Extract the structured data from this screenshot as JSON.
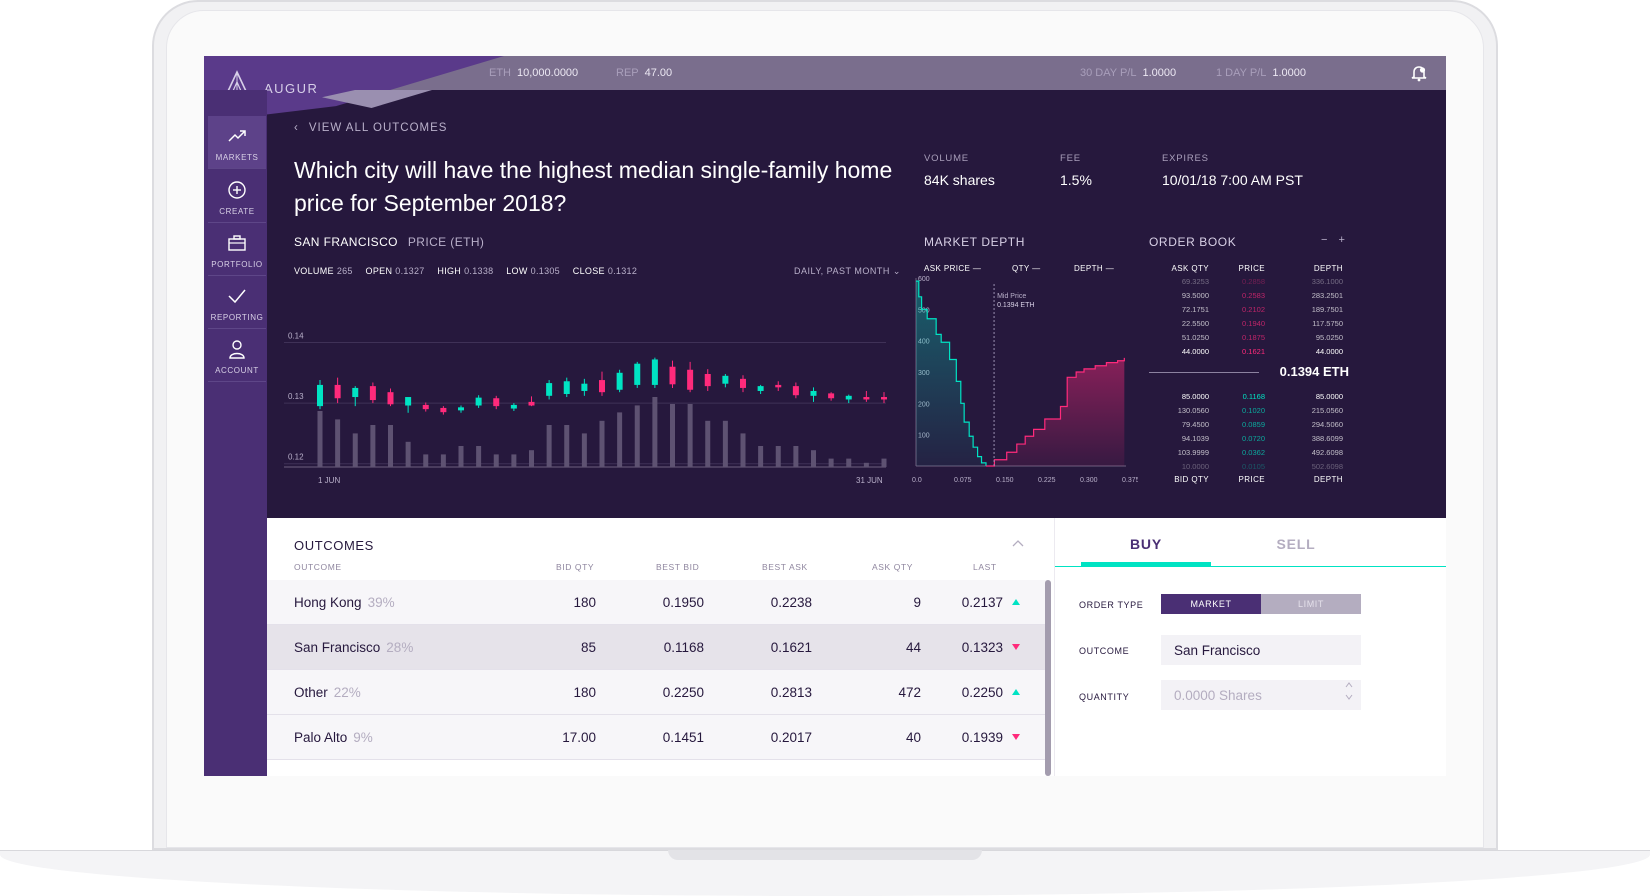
{
  "app": {
    "logo_text": "AUGUR"
  },
  "topbar": {
    "eth_label": "ETH",
    "eth_value": "10,000.0000",
    "rep_label": "REP",
    "rep_value": "47.00",
    "pl30_label": "30 DAY P/L",
    "pl30_value": "1.0000",
    "pl1_label": "1 DAY P/L",
    "pl1_value": "1.0000",
    "notification_icon": "bell-icon"
  },
  "sidebar": {
    "items": [
      {
        "label": "MARKETS",
        "icon": "trend-up-icon",
        "active": true
      },
      {
        "label": "CREATE",
        "icon": "plus-circle-icon"
      },
      {
        "label": "PORTFOLIO",
        "icon": "briefcase-icon"
      },
      {
        "label": "REPORTING",
        "icon": "check-icon"
      },
      {
        "label": "ACCOUNT",
        "icon": "person-icon"
      }
    ]
  },
  "market": {
    "back_label": "VIEW ALL OUTCOMES",
    "question": "Which city will have the highest median single-family home price for September 2018?",
    "volume_label": "VOLUME",
    "volume_value": "84K shares",
    "fee_label": "FEE",
    "fee_value": "1.5%",
    "expires_label": "EXPIRES",
    "expires_value": "10/01/18 7:00 AM PST"
  },
  "price_chart": {
    "outcome": "SAN FRANCISCO",
    "subtitle": "PRICE (ETH)",
    "volume_label": "VOLUME",
    "volume_value": "265",
    "open_label": "OPEN",
    "open_value": "0.1327",
    "high_label": "HIGH",
    "high_value": "0.1338",
    "low_label": "LOW",
    "low_value": "0.1305",
    "close_label": "CLOSE",
    "close_value": "0.1312",
    "period": "DAILY, PAST MONTH"
  },
  "market_depth": {
    "title": "MARKET DEPTH",
    "col_ask_price": "ASK PRICE",
    "col_qty": "QTY",
    "col_depth": "DEPTH",
    "mid_label": "Mid Price",
    "mid_value": "0.1394 ETH"
  },
  "order_book": {
    "title": "ORDER BOOK",
    "toggle": "− +",
    "head_qty": "ASK QTY",
    "head_price": "PRICE",
    "head_depth": "DEPTH",
    "foot_qty": "BID QTY",
    "foot_price": "PRICE",
    "foot_depth": "DEPTH",
    "mid_price": "0.1394 ETH",
    "asks": [
      {
        "qty": "69.3253",
        "price": "0.2858",
        "depth": "336.1000"
      },
      {
        "qty": "93.5000",
        "price": "0.2583",
        "depth": "283.2501"
      },
      {
        "qty": "72.1751",
        "price": "0.2102",
        "depth": "189.7501"
      },
      {
        "qty": "22.5500",
        "price": "0.1940",
        "depth": "117.5750"
      },
      {
        "qty": "51.0250",
        "price": "0.1875",
        "depth": "95.0250"
      },
      {
        "qty": "44.0000",
        "price": "0.1621",
        "depth": "44.0000"
      }
    ],
    "bids": [
      {
        "qty": "85.0000",
        "price": "0.1168",
        "depth": "85.0000"
      },
      {
        "qty": "130.0560",
        "price": "0.1020",
        "depth": "215.0560"
      },
      {
        "qty": "79.4500",
        "price": "0.0859",
        "depth": "294.5060"
      },
      {
        "qty": "94.1039",
        "price": "0.0720",
        "depth": "388.6099"
      },
      {
        "qty": "103.9999",
        "price": "0.0362",
        "depth": "492.6098"
      },
      {
        "qty": "10.0000",
        "price": "0.0105",
        "depth": "502.6098"
      }
    ]
  },
  "outcomes": {
    "title": "OUTCOMES",
    "col_outcome": "OUTCOME",
    "col_bid_qty": "BID QTY",
    "col_best_bid": "BEST BID",
    "col_best_ask": "BEST ASK",
    "col_ask_qty": "ASK QTY",
    "col_last": "LAST",
    "rows": [
      {
        "name": "Hong Kong",
        "pct": "39%",
        "bid_qty": "180",
        "best_bid": "0.1950",
        "best_ask": "0.2238",
        "ask_qty": "9",
        "last": "0.2137",
        "dir": "up"
      },
      {
        "name": "San Francisco",
        "pct": "28%",
        "bid_qty": "85",
        "best_bid": "0.1168",
        "best_ask": "0.1621",
        "ask_qty": "44",
        "last": "0.1323",
        "dir": "down"
      },
      {
        "name": "Other",
        "pct": "22%",
        "bid_qty": "180",
        "best_bid": "0.2250",
        "best_ask": "0.2813",
        "ask_qty": "472",
        "last": "0.2250",
        "dir": "up"
      },
      {
        "name": "Palo Alto",
        "pct": "9%",
        "bid_qty": "17.00",
        "best_bid": "0.1451",
        "best_ask": "0.2017",
        "ask_qty": "40",
        "last": "0.1939",
        "dir": "down"
      }
    ]
  },
  "trade": {
    "buy_label": "BUY",
    "sell_label": "SELL",
    "order_type_label": "ORDER TYPE",
    "market_option": "MARKET",
    "limit_option": "LIMIT",
    "outcome_label": "OUTCOME",
    "outcome_value": "San Francisco",
    "quantity_label": "QUANTITY",
    "quantity_placeholder": "0.0000 Shares"
  },
  "colors": {
    "up": "#00e3c3",
    "down": "#ff2a7b",
    "accent": "#4a2f74",
    "bg": "#26183d"
  },
  "chart_data": [
    {
      "type": "candlestick",
      "title": "",
      "x_tick_labels": [
        "1 JUN",
        "31 JUN"
      ],
      "y_tick_labels": [
        "0.12",
        "0.13",
        "0.14"
      ],
      "ylim": [
        0.115,
        0.148
      ],
      "series": [
        {
          "values": [
            {
              "o": 0.1295,
              "h": 0.1338,
              "l": 0.129,
              "c": 0.133,
              "v": 200
            },
            {
              "o": 0.133,
              "h": 0.1342,
              "l": 0.13,
              "c": 0.1308,
              "v": 170
            },
            {
              "o": 0.131,
              "h": 0.1328,
              "l": 0.1295,
              "c": 0.1325,
              "v": 120
            },
            {
              "o": 0.1328,
              "h": 0.1334,
              "l": 0.13,
              "c": 0.1305,
              "v": 150
            },
            {
              "o": 0.1318,
              "h": 0.1324,
              "l": 0.1295,
              "c": 0.1298,
              "v": 150
            },
            {
              "o": 0.1296,
              "h": 0.1305,
              "l": 0.1284,
              "c": 0.131,
              "v": 90
            },
            {
              "o": 0.1297,
              "h": 0.1301,
              "l": 0.1286,
              "c": 0.129,
              "v": 45
            },
            {
              "o": 0.1292,
              "h": 0.1295,
              "l": 0.1281,
              "c": 0.1285,
              "v": 45
            },
            {
              "o": 0.1288,
              "h": 0.1296,
              "l": 0.1284,
              "c": 0.1293,
              "v": 75
            },
            {
              "o": 0.1296,
              "h": 0.1313,
              "l": 0.1292,
              "c": 0.1309,
              "v": 75
            },
            {
              "o": 0.1308,
              "h": 0.1312,
              "l": 0.129,
              "c": 0.1295,
              "v": 45
            },
            {
              "o": 0.1291,
              "h": 0.13,
              "l": 0.1287,
              "c": 0.1297,
              "v": 45
            },
            {
              "o": 0.1302,
              "h": 0.1311,
              "l": 0.1295,
              "c": 0.1296,
              "v": 60
            },
            {
              "o": 0.1312,
              "h": 0.1338,
              "l": 0.1306,
              "c": 0.1333,
              "v": 150
            },
            {
              "o": 0.1315,
              "h": 0.1342,
              "l": 0.131,
              "c": 0.1336,
              "v": 150
            },
            {
              "o": 0.132,
              "h": 0.134,
              "l": 0.1312,
              "c": 0.1332,
              "v": 120
            },
            {
              "o": 0.1338,
              "h": 0.1352,
              "l": 0.1312,
              "c": 0.1318,
              "v": 165
            },
            {
              "o": 0.1322,
              "h": 0.1355,
              "l": 0.1318,
              "c": 0.135,
              "v": 195
            },
            {
              "o": 0.133,
              "h": 0.1368,
              "l": 0.1325,
              "c": 0.1365,
              "v": 220
            },
            {
              "o": 0.133,
              "h": 0.1375,
              "l": 0.1325,
              "c": 0.1372,
              "v": 250
            },
            {
              "o": 0.136,
              "h": 0.137,
              "l": 0.1325,
              "c": 0.1331,
              "v": 225
            },
            {
              "o": 0.1355,
              "h": 0.1368,
              "l": 0.1318,
              "c": 0.1322,
              "v": 225
            },
            {
              "o": 0.1348,
              "h": 0.1356,
              "l": 0.132,
              "c": 0.1328,
              "v": 165
            },
            {
              "o": 0.1332,
              "h": 0.1348,
              "l": 0.1326,
              "c": 0.1345,
              "v": 165
            },
            {
              "o": 0.134,
              "h": 0.1346,
              "l": 0.1318,
              "c": 0.1325,
              "v": 120
            },
            {
              "o": 0.132,
              "h": 0.133,
              "l": 0.1315,
              "c": 0.1328,
              "v": 75
            },
            {
              "o": 0.133,
              "h": 0.1336,
              "l": 0.132,
              "c": 0.1326,
              "v": 75
            },
            {
              "o": 0.1328,
              "h": 0.1334,
              "l": 0.1308,
              "c": 0.1313,
              "v": 75
            },
            {
              "o": 0.1312,
              "h": 0.1326,
              "l": 0.1302,
              "c": 0.132,
              "v": 60
            },
            {
              "o": 0.1316,
              "h": 0.1318,
              "l": 0.1304,
              "c": 0.1308,
              "v": 30
            },
            {
              "o": 0.1306,
              "h": 0.1314,
              "l": 0.13,
              "c": 0.1312,
              "v": 30
            },
            {
              "o": 0.131,
              "h": 0.132,
              "l": 0.1302,
              "c": 0.1306,
              "v": 15
            },
            {
              "o": 0.131,
              "h": 0.1318,
              "l": 0.13,
              "c": 0.1306,
              "v": 30
            }
          ]
        }
      ]
    },
    {
      "type": "area",
      "title": "",
      "x_tick_labels": [
        "0.0",
        "0.075",
        "0.150",
        "0.225",
        "0.300",
        "0.375"
      ],
      "y_tick_labels": [
        "100",
        "200",
        "300",
        "400",
        "500",
        "600"
      ],
      "xlim": [
        0,
        0.375
      ],
      "ylim": [
        0,
        600
      ],
      "mid_price": 0.1394,
      "series": [
        {
          "name": "bids",
          "x": [
            0.0,
            0.005,
            0.01,
            0.02,
            0.036,
            0.045,
            0.06,
            0.072,
            0.08,
            0.086,
            0.095,
            0.102,
            0.11,
            0.117,
            0.125
          ],
          "y": [
            590,
            540,
            500,
            470,
            420,
            395,
            340,
            270,
            200,
            140,
            95,
            60,
            30,
            10,
            0
          ]
        },
        {
          "name": "asks",
          "x": [
            0.125,
            0.14,
            0.162,
            0.18,
            0.195,
            0.21,
            0.23,
            0.258,
            0.27,
            0.286,
            0.3,
            0.32,
            0.34,
            0.36,
            0.372
          ],
          "y": [
            0,
            20,
            44,
            70,
            95,
            117,
            150,
            190,
            283,
            300,
            310,
            320,
            330,
            336,
            345
          ]
        }
      ]
    }
  ]
}
